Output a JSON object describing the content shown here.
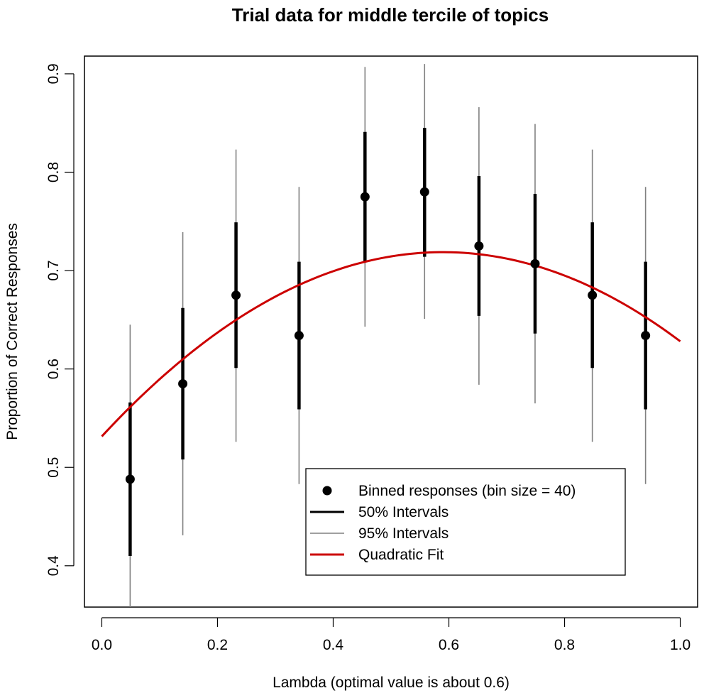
{
  "chart_data": {
    "type": "scatter",
    "title": "Trial data for middle tercile of topics",
    "xlabel": "Lambda (optimal value is about 0.6)",
    "ylabel": "Proportion of Correct Responses",
    "xlim": [
      -0.03,
      1.03
    ],
    "ylim": [
      0.358,
      0.918
    ],
    "x_ticks": [
      "0.0",
      "0.2",
      "0.4",
      "0.6",
      "0.8",
      "1.0"
    ],
    "y_ticks": [
      "0.4",
      "0.5",
      "0.6",
      "0.7",
      "0.8",
      "0.9"
    ],
    "points": [
      {
        "x": 0.049,
        "y": 0.488,
        "ci50": [
          0.41,
          0.566
        ],
        "ci95": [
          0.358,
          0.645
        ]
      },
      {
        "x": 0.14,
        "y": 0.585,
        "ci50": [
          0.508,
          0.662
        ],
        "ci95": [
          0.431,
          0.739
        ]
      },
      {
        "x": 0.232,
        "y": 0.675,
        "ci50": [
          0.601,
          0.749
        ],
        "ci95": [
          0.526,
          0.823
        ]
      },
      {
        "x": 0.341,
        "y": 0.634,
        "ci50": [
          0.559,
          0.709
        ],
        "ci95": [
          0.483,
          0.785
        ]
      },
      {
        "x": 0.455,
        "y": 0.775,
        "ci50": [
          0.709,
          0.841
        ],
        "ci95": [
          0.643,
          0.907
        ]
      },
      {
        "x": 0.558,
        "y": 0.78,
        "ci50": [
          0.714,
          0.845
        ],
        "ci95": [
          0.651,
          0.91
        ]
      },
      {
        "x": 0.652,
        "y": 0.725,
        "ci50": [
          0.654,
          0.796
        ],
        "ci95": [
          0.584,
          0.866
        ]
      },
      {
        "x": 0.749,
        "y": 0.707,
        "ci50": [
          0.636,
          0.778
        ],
        "ci95": [
          0.565,
          0.849
        ]
      },
      {
        "x": 0.848,
        "y": 0.675,
        "ci50": [
          0.601,
          0.749
        ],
        "ci95": [
          0.526,
          0.823
        ]
      },
      {
        "x": 0.94,
        "y": 0.634,
        "ci50": [
          0.559,
          0.709
        ],
        "ci95": [
          0.483,
          0.785
        ]
      }
    ],
    "quadratic_fit": {
      "a": 0.5315,
      "b": 0.635,
      "c": -0.5384,
      "x_range": [
        0.0,
        1.0
      ]
    },
    "legend": {
      "position": "bottom-right",
      "entries": [
        {
          "label": "Binned responses (bin size = 40)",
          "kind": "point"
        },
        {
          "label": "50% Intervals",
          "kind": "line-thick"
        },
        {
          "label": "95% Intervals",
          "kind": "line-thin"
        },
        {
          "label": "Quadratic Fit",
          "kind": "line-fit"
        }
      ]
    },
    "colors": {
      "points": "#000000",
      "ci50": "#000000",
      "ci95": "#808080",
      "fit": "#cc0000"
    },
    "grid": false
  }
}
